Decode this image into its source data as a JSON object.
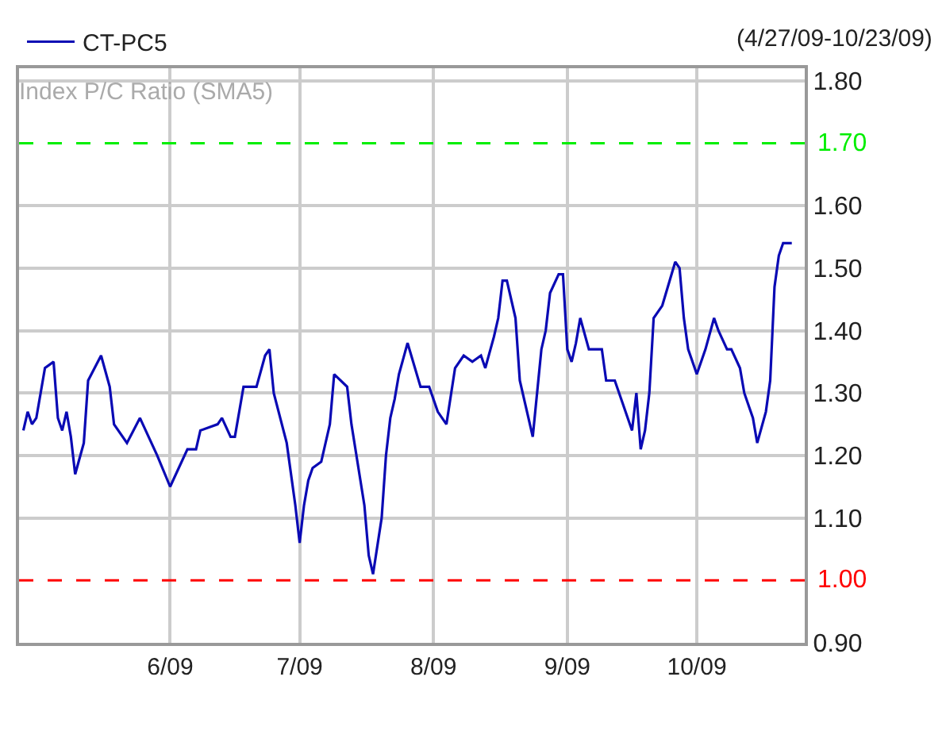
{
  "chart_data": {
    "type": "line",
    "title": "Index P/C Ratio (SMA5)",
    "subtitle": "(4/27/09-10/23/09)",
    "x": [
      "2009-04-28",
      "2009-04-29",
      "2009-04-30",
      "2009-05-01",
      "2009-05-02",
      "2009-05-03",
      "2009-05-05",
      "2009-05-06",
      "2009-05-07",
      "2009-05-08",
      "2009-05-09",
      "2009-05-10",
      "2009-05-12",
      "2009-05-13",
      "2009-05-16",
      "2009-05-18",
      "2009-05-19",
      "2009-05-22",
      "2009-05-25",
      "2009-05-29",
      "2009-06-01",
      "2009-06-05",
      "2009-06-07",
      "2009-06-08",
      "2009-06-12",
      "2009-06-13",
      "2009-06-15",
      "2009-06-16",
      "2009-06-18",
      "2009-06-21",
      "2009-06-23",
      "2009-06-24",
      "2009-06-25",
      "2009-06-28",
      "2009-06-30",
      "2009-07-01",
      "2009-07-02",
      "2009-07-03",
      "2009-07-04",
      "2009-07-06",
      "2009-07-08",
      "2009-07-09",
      "2009-07-12",
      "2009-07-13",
      "2009-07-16",
      "2009-07-17",
      "2009-07-18",
      "2009-07-20",
      "2009-07-21",
      "2009-07-22",
      "2009-07-23",
      "2009-07-24",
      "2009-07-26",
      "2009-07-29",
      "2009-07-31",
      "2009-08-02",
      "2009-08-04",
      "2009-08-06",
      "2009-08-08",
      "2009-08-10",
      "2009-08-12",
      "2009-08-13",
      "2009-08-15",
      "2009-08-16",
      "2009-08-17",
      "2009-08-18",
      "2009-08-20",
      "2009-08-21",
      "2009-08-23",
      "2009-08-24",
      "2009-08-25",
      "2009-08-26",
      "2009-08-27",
      "2009-08-28",
      "2009-08-30",
      "2009-08-31",
      "2009-09-01",
      "2009-09-02",
      "2009-09-03",
      "2009-09-04",
      "2009-09-06",
      "2009-09-07",
      "2009-09-09",
      "2009-09-10",
      "2009-09-12",
      "2009-09-15",
      "2009-09-16",
      "2009-09-17",
      "2009-09-18",
      "2009-09-19",
      "2009-09-20",
      "2009-09-21",
      "2009-09-23",
      "2009-09-26",
      "2009-09-27",
      "2009-09-28",
      "2009-09-29",
      "2009-10-01",
      "2009-10-03",
      "2009-10-05",
      "2009-10-06",
      "2009-10-08",
      "2009-10-09",
      "2009-10-11",
      "2009-10-12",
      "2009-10-14",
      "2009-10-15",
      "2009-10-17",
      "2009-10-18",
      "2009-10-19",
      "2009-10-20",
      "2009-10-21",
      "2009-10-23"
    ],
    "series": [
      {
        "name": "CT-PC5",
        "color": "#0a0ab4",
        "values": [
          1.24,
          1.27,
          1.25,
          1.26,
          1.3,
          1.34,
          1.35,
          1.26,
          1.24,
          1.27,
          1.23,
          1.17,
          1.22,
          1.32,
          1.36,
          1.31,
          1.25,
          1.22,
          1.26,
          1.2,
          1.15,
          1.21,
          1.21,
          1.24,
          1.25,
          1.26,
          1.23,
          1.23,
          1.31,
          1.31,
          1.36,
          1.37,
          1.3,
          1.22,
          1.12,
          1.06,
          1.12,
          1.16,
          1.18,
          1.19,
          1.25,
          1.33,
          1.31,
          1.25,
          1.12,
          1.04,
          1.01,
          1.1,
          1.2,
          1.26,
          1.29,
          1.33,
          1.38,
          1.31,
          1.31,
          1.27,
          1.25,
          1.34,
          1.36,
          1.35,
          1.36,
          1.34,
          1.39,
          1.42,
          1.48,
          1.48,
          1.42,
          1.32,
          1.26,
          1.23,
          1.3,
          1.37,
          1.4,
          1.46,
          1.49,
          1.49,
          1.37,
          1.35,
          1.38,
          1.42,
          1.37,
          1.37,
          1.37,
          1.32,
          1.32,
          1.26,
          1.24,
          1.3,
          1.21,
          1.24,
          1.3,
          1.42,
          1.44,
          1.51,
          1.5,
          1.42,
          1.37,
          1.33,
          1.37,
          1.42,
          1.4,
          1.37,
          1.37,
          1.34,
          1.3,
          1.26,
          1.22,
          1.27,
          1.32,
          1.47,
          1.52,
          1.54,
          1.54
        ]
      }
    ],
    "xlim": [
      "2009-04-27",
      "2009-10-26"
    ],
    "xticks": [
      {
        "value": "2009-06-01",
        "label": "6/09"
      },
      {
        "value": "2009-07-01",
        "label": "7/09"
      },
      {
        "value": "2009-08-01",
        "label": "8/09"
      },
      {
        "value": "2009-09-01",
        "label": "9/09"
      },
      {
        "value": "2009-10-01",
        "label": "10/09"
      }
    ],
    "ylim": [
      0.9,
      1.82
    ],
    "yticks": [
      {
        "value": 0.9,
        "label": "0.90"
      },
      {
        "value": 1.1,
        "label": "1.10"
      },
      {
        "value": 1.2,
        "label": "1.20"
      },
      {
        "value": 1.3,
        "label": "1.30"
      },
      {
        "value": 1.4,
        "label": "1.40"
      },
      {
        "value": 1.5,
        "label": "1.50"
      },
      {
        "value": 1.6,
        "label": "1.60"
      },
      {
        "value": 1.8,
        "label": "1.80"
      }
    ],
    "ref_lines": [
      {
        "axis": "y",
        "value": 1.7,
        "label": "1.70",
        "color": "#00ee00",
        "line_style": "dashed"
      },
      {
        "axis": "y",
        "value": 1.0,
        "label": "1.00",
        "color": "#ff0000",
        "line_style": "dashed"
      }
    ],
    "grid": true,
    "legend": "top left",
    "marker": "none",
    "line_style": "solid"
  }
}
